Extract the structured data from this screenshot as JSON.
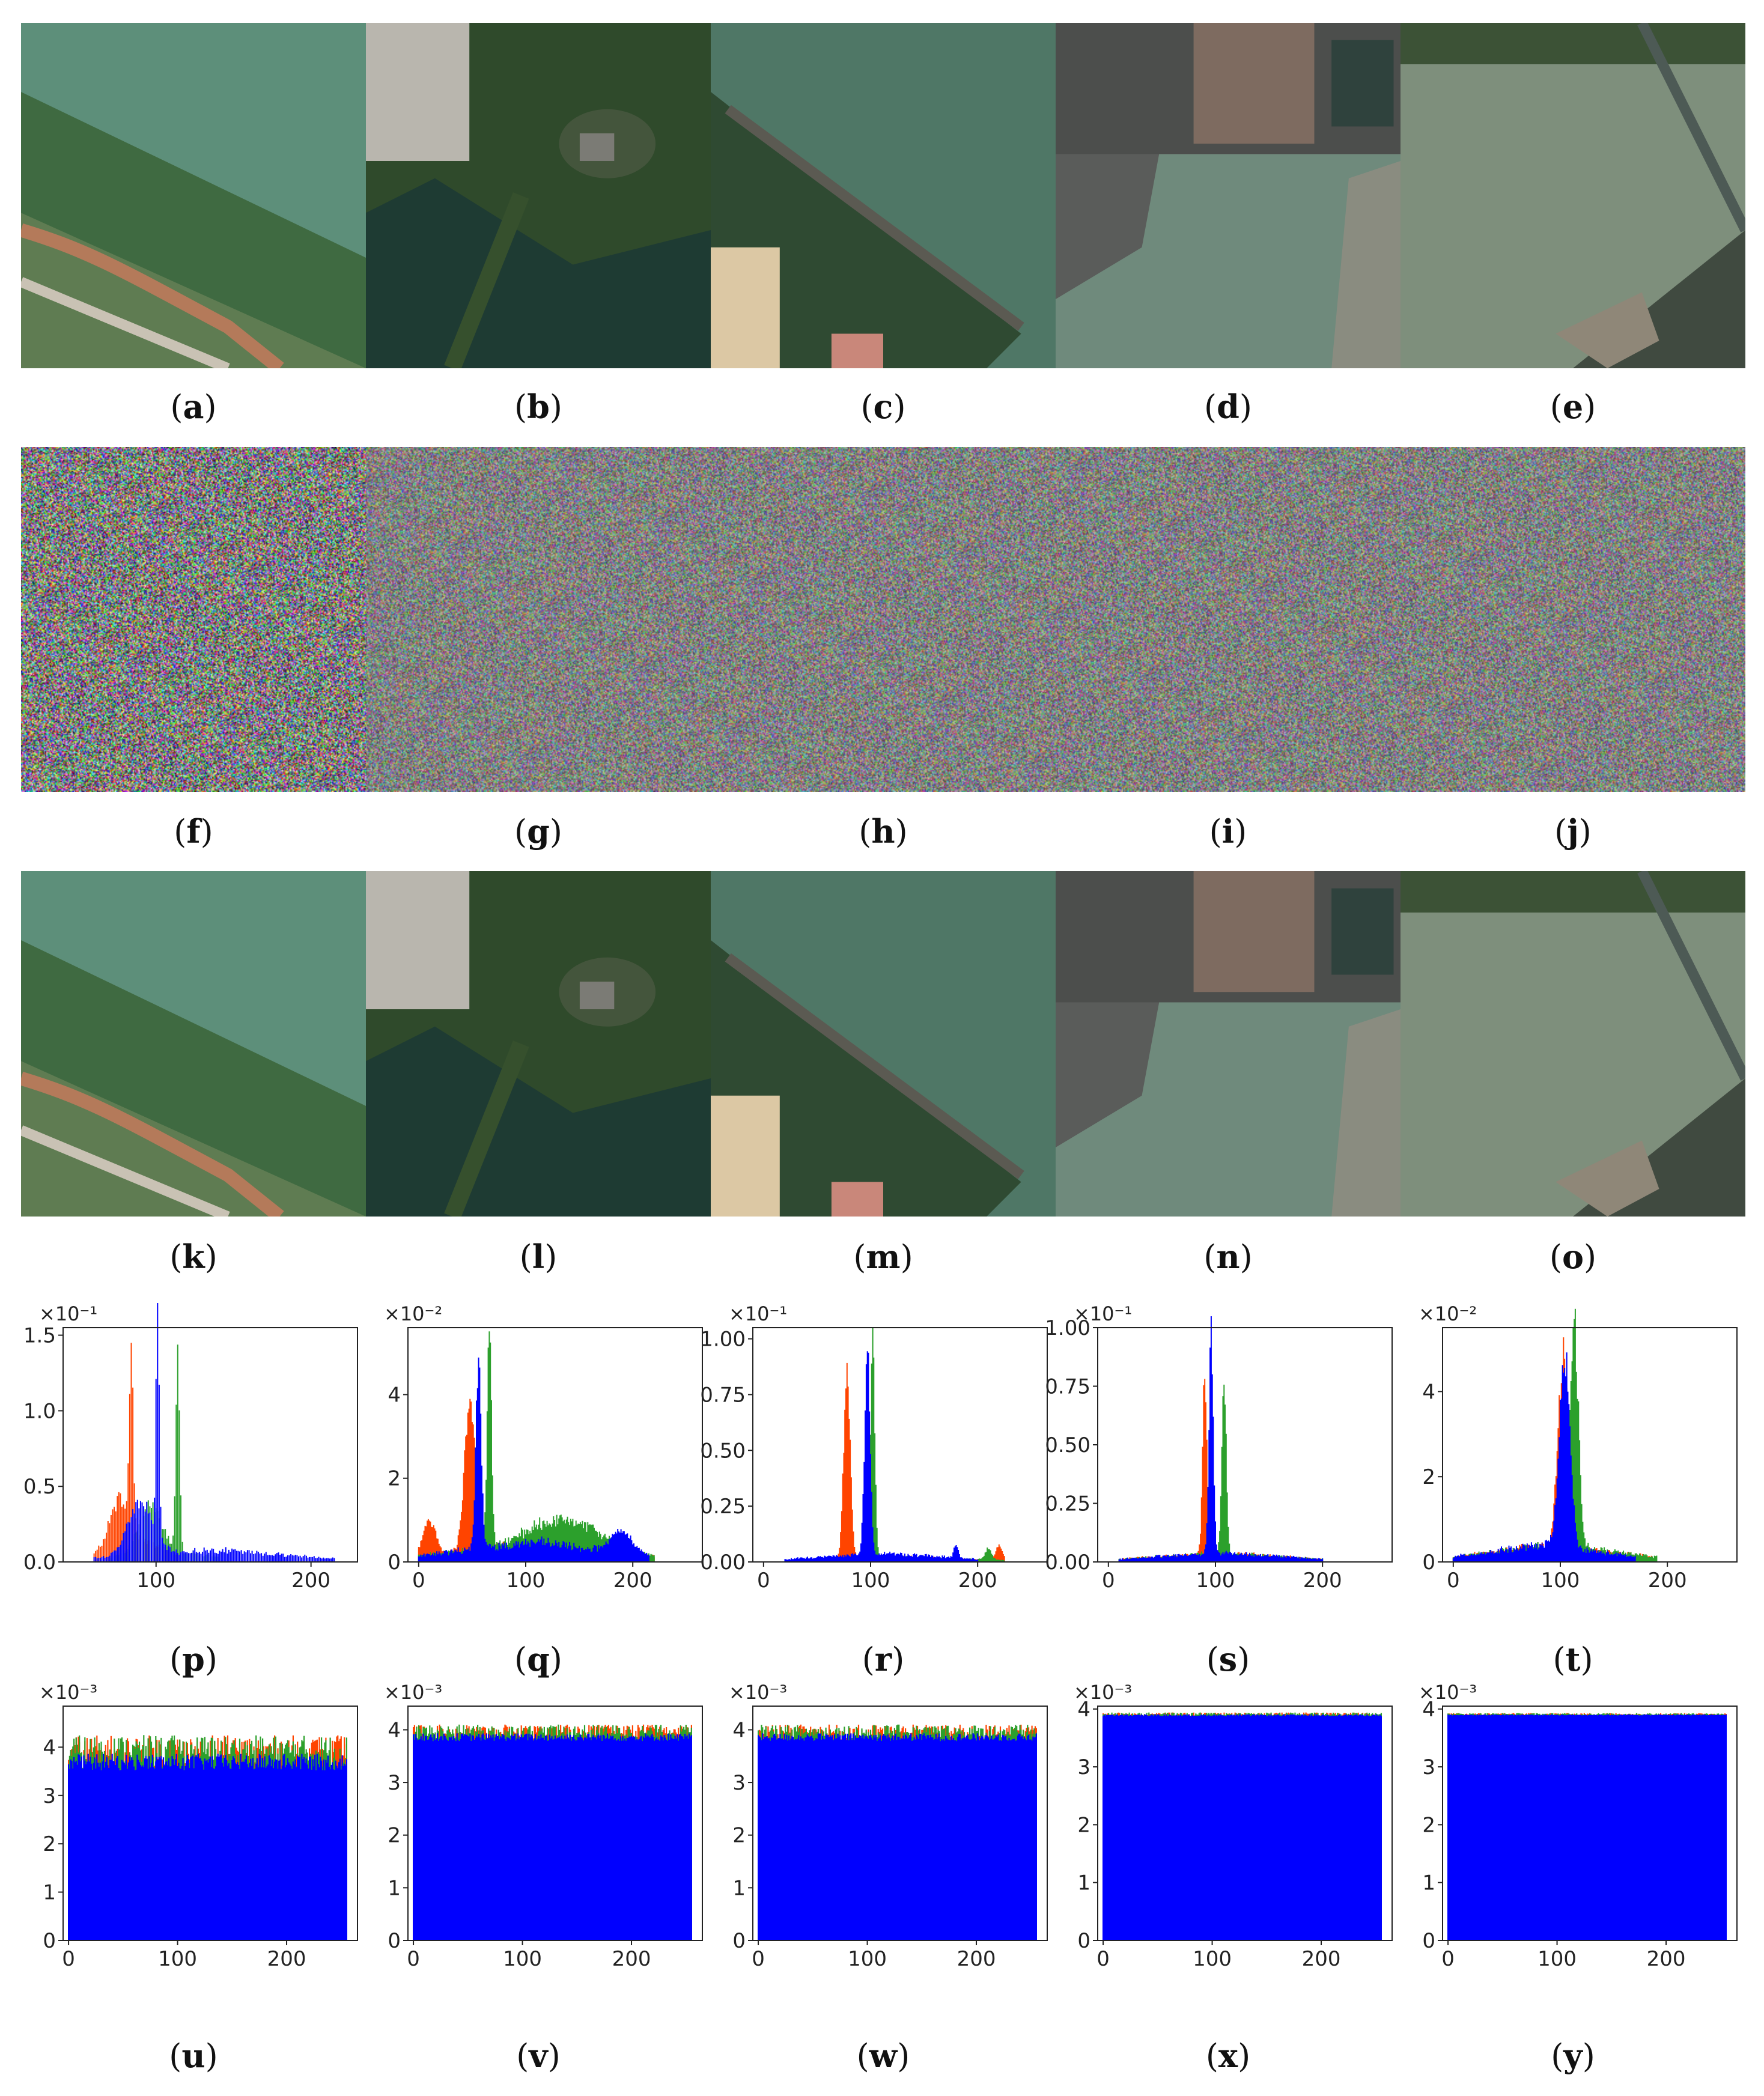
{
  "captions": {
    "a": "a",
    "b": "b",
    "c": "c",
    "d": "d",
    "e": "e",
    "f": "f",
    "g": "g",
    "h": "h",
    "i": "i",
    "j": "j",
    "k": "k",
    "l": "l",
    "m": "m",
    "n": "n",
    "o": "o",
    "p": "p",
    "q": "q",
    "r": "r",
    "s": "s",
    "t": "t",
    "u": "u",
    "v": "v",
    "w": "w",
    "x": "x",
    "y": "y"
  },
  "colors": {
    "red": "#ff4400",
    "green": "#2ca02c",
    "blue": "#0000ff"
  },
  "chart_data": [
    {
      "id": "p",
      "type": "area",
      "multiplier": "×10⁻¹",
      "xlim": [
        40,
        230
      ],
      "ylim": [
        0,
        1.55
      ],
      "xticks": [
        100,
        200
      ],
      "yticks": [
        0.0,
        0.5,
        1.0,
        1.5
      ],
      "ytick_labels": [
        "0.0",
        "0.5",
        "1.0",
        "1.5"
      ],
      "series": [
        {
          "color": "red",
          "base": 0.2,
          "range": [
            60,
            115
          ],
          "peaks": [
            [
              84,
              1.2,
              1.2
            ],
            [
              76,
              0.3,
              6
            ]
          ]
        },
        {
          "color": "green",
          "base": 0.12,
          "range": [
            70,
            140
          ],
          "peaks": [
            [
              114,
              1.44,
              1.2
            ],
            [
              96,
              0.3,
              7
            ]
          ]
        },
        {
          "color": "blue",
          "base": 0.1,
          "range": [
            60,
            215
          ],
          "peaks": [
            [
              101,
              1.47,
              1.0
            ],
            [
              90,
              0.35,
              8
            ]
          ]
        }
      ]
    },
    {
      "id": "q",
      "type": "area",
      "multiplier": "×10⁻²",
      "xlim": [
        -10,
        265
      ],
      "ylim": [
        0,
        5.6
      ],
      "xticks": [
        0,
        100,
        200
      ],
      "yticks": [
        0,
        2,
        4
      ],
      "ytick_labels": [
        "0",
        "2",
        "4"
      ],
      "series": [
        {
          "color": "red",
          "base": 0.6,
          "range": [
            0,
            220
          ],
          "peaks": [
            [
              48,
              3.7,
              5
            ],
            [
              10,
              0.8,
              6
            ]
          ]
        },
        {
          "color": "green",
          "base": 0.6,
          "range": [
            0,
            220
          ],
          "peaks": [
            [
              66,
              5.4,
              2
            ],
            [
              140,
              0.6,
              30
            ]
          ]
        },
        {
          "color": "blue",
          "base": 0.6,
          "range": [
            0,
            215
          ],
          "peaks": [
            [
              56,
              4.5,
              2.5
            ],
            [
              190,
              0.5,
              10
            ]
          ]
        }
      ]
    },
    {
      "id": "r",
      "type": "area",
      "multiplier": "×10⁻¹",
      "xlim": [
        -10,
        265
      ],
      "ylim": [
        0,
        1.05
      ],
      "xticks": [
        0,
        100,
        200
      ],
      "yticks": [
        0.0,
        0.25,
        0.5,
        0.75,
        1.0
      ],
      "ytick_labels": [
        "0.00",
        "0.25",
        "0.50",
        "0.75",
        "1.00"
      ],
      "series": [
        {
          "color": "red",
          "base": 0.03,
          "range": [
            20,
            225
          ],
          "peaks": [
            [
              78,
              0.85,
              3
            ],
            [
              220,
              0.07,
              3
            ]
          ]
        },
        {
          "color": "green",
          "base": 0.03,
          "range": [
            20,
            225
          ],
          "peaks": [
            [
              102,
              0.97,
              2
            ],
            [
              210,
              0.05,
              3
            ]
          ]
        },
        {
          "color": "blue",
          "base": 0.05,
          "range": [
            20,
            200
          ],
          "peaks": [
            [
              97,
              0.93,
              2.5
            ],
            [
              180,
              0.06,
              2
            ]
          ]
        }
      ]
    },
    {
      "id": "s",
      "type": "area",
      "multiplier": "×10⁻¹",
      "xlim": [
        -10,
        265
      ],
      "ylim": [
        0,
        1.0
      ],
      "xticks": [
        0,
        100,
        200
      ],
      "yticks": [
        0.0,
        0.25,
        0.5,
        0.75,
        1.0
      ],
      "ytick_labels": [
        "0.00",
        "0.25",
        "0.50",
        "0.75",
        "1.00"
      ],
      "series": [
        {
          "color": "red",
          "base": 0.05,
          "range": [
            10,
            200
          ],
          "peaks": [
            [
              90,
              0.78,
              2
            ]
          ]
        },
        {
          "color": "green",
          "base": 0.05,
          "range": [
            10,
            200
          ],
          "peaks": [
            [
              108,
              0.76,
              2
            ]
          ]
        },
        {
          "color": "blue",
          "base": 0.05,
          "range": [
            10,
            200
          ],
          "peaks": [
            [
              96,
              0.94,
              2
            ]
          ]
        }
      ]
    },
    {
      "id": "t",
      "type": "area",
      "multiplier": "×10⁻²",
      "xlim": [
        -10,
        265
      ],
      "ylim": [
        0,
        5.5
      ],
      "xticks": [
        0,
        100,
        200
      ],
      "yticks": [
        0,
        2,
        4
      ],
      "ytick_labels": [
        "0",
        "2",
        "4"
      ],
      "series": [
        {
          "color": "red",
          "base": 0.5,
          "range": [
            0,
            185
          ],
          "peaks": [
            [
              103,
              4.5,
              5
            ]
          ]
        },
        {
          "color": "green",
          "base": 0.5,
          "range": [
            0,
            190
          ],
          "peaks": [
            [
              113,
              5.2,
              4
            ]
          ]
        },
        {
          "color": "blue",
          "base": 0.5,
          "range": [
            0,
            170
          ],
          "peaks": [
            [
              104,
              4.5,
              5
            ]
          ]
        }
      ]
    },
    {
      "id": "u",
      "type": "bar",
      "multiplier": "×10⁻³",
      "xlim": [
        -5,
        265
      ],
      "ylim": [
        0,
        4.85
      ],
      "xticks": [
        0,
        100,
        200
      ],
      "yticks": [
        0,
        1,
        2,
        3,
        4
      ],
      "ytick_labels": [
        "0",
        "1",
        "2",
        "3",
        "4"
      ],
      "level": 3.9,
      "spread": 0.35
    },
    {
      "id": "v",
      "type": "bar",
      "multiplier": "×10⁻³",
      "xlim": [
        -5,
        265
      ],
      "ylim": [
        0,
        4.45
      ],
      "xticks": [
        0,
        100,
        200
      ],
      "yticks": [
        0,
        1,
        2,
        3,
        4
      ],
      "ytick_labels": [
        "0",
        "1",
        "2",
        "3",
        "4"
      ],
      "level": 3.95,
      "spread": 0.15
    },
    {
      "id": "w",
      "type": "bar",
      "multiplier": "×10⁻³",
      "xlim": [
        -5,
        265
      ],
      "ylim": [
        0,
        4.45
      ],
      "xticks": [
        0,
        100,
        200
      ],
      "yticks": [
        0,
        1,
        2,
        3,
        4
      ],
      "ytick_labels": [
        "0",
        "1",
        "2",
        "3",
        "4"
      ],
      "level": 3.95,
      "spread": 0.15
    },
    {
      "id": "x",
      "type": "bar",
      "multiplier": "×10⁻³",
      "xlim": [
        -5,
        265
      ],
      "ylim": [
        0,
        4.05
      ],
      "xticks": [
        0,
        100,
        200
      ],
      "yticks": [
        0,
        1,
        2,
        3,
        4
      ],
      "ytick_labels": [
        "0",
        "1",
        "2",
        "3",
        "4"
      ],
      "level": 3.91,
      "spread": 0.03
    },
    {
      "id": "y",
      "type": "bar",
      "multiplier": "×10⁻³",
      "xlim": [
        -5,
        265
      ],
      "ylim": [
        0,
        4.05
      ],
      "xticks": [
        0,
        100,
        200
      ],
      "yticks": [
        0,
        1,
        2,
        3,
        4
      ],
      "ytick_labels": [
        "0",
        "1",
        "2",
        "3",
        "4"
      ],
      "level": 3.91,
      "spread": 0.02
    }
  ]
}
